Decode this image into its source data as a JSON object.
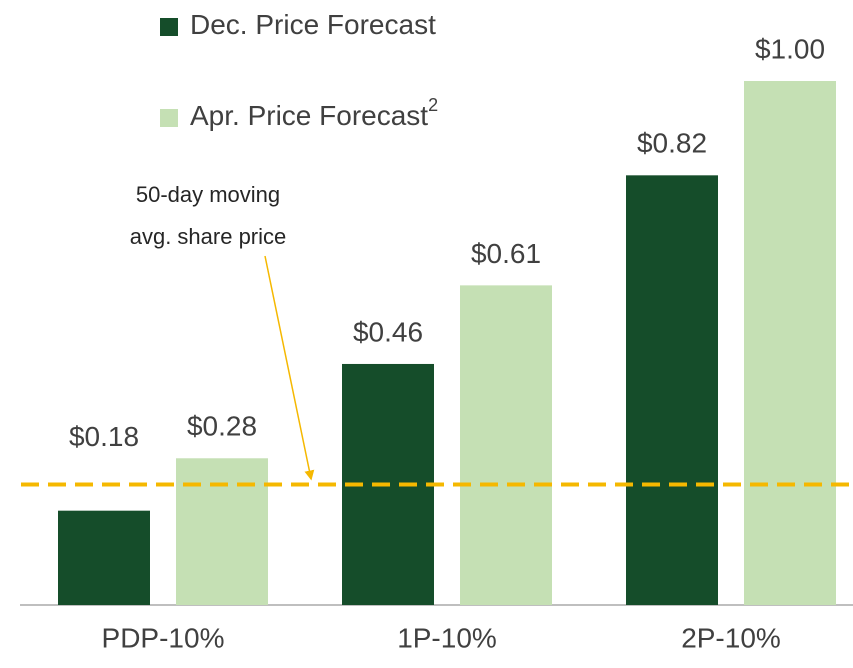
{
  "chart_data": {
    "type": "bar",
    "categories": [
      "PDP-10%",
      "1P-10%",
      "2P-10%"
    ],
    "series": [
      {
        "name": "Dec. Price Forecast",
        "color": "#154d2a",
        "values": [
          0.18,
          0.46,
          0.82
        ],
        "value_labels": [
          "$0.18",
          "$0.46",
          "$0.82"
        ]
      },
      {
        "name": "Apr. Price Forecast",
        "name_superscript": "2",
        "color": "#c5e0b4",
        "values": [
          0.28,
          0.61,
          1.0
        ],
        "value_labels": [
          "$0.28",
          "$0.61",
          "$1.00"
        ]
      }
    ],
    "ylim": [
      0,
      1
    ],
    "reference_line": {
      "value": 0.23,
      "color": "#f5b800",
      "label": [
        "50-day moving",
        "avg. share price"
      ]
    }
  }
}
